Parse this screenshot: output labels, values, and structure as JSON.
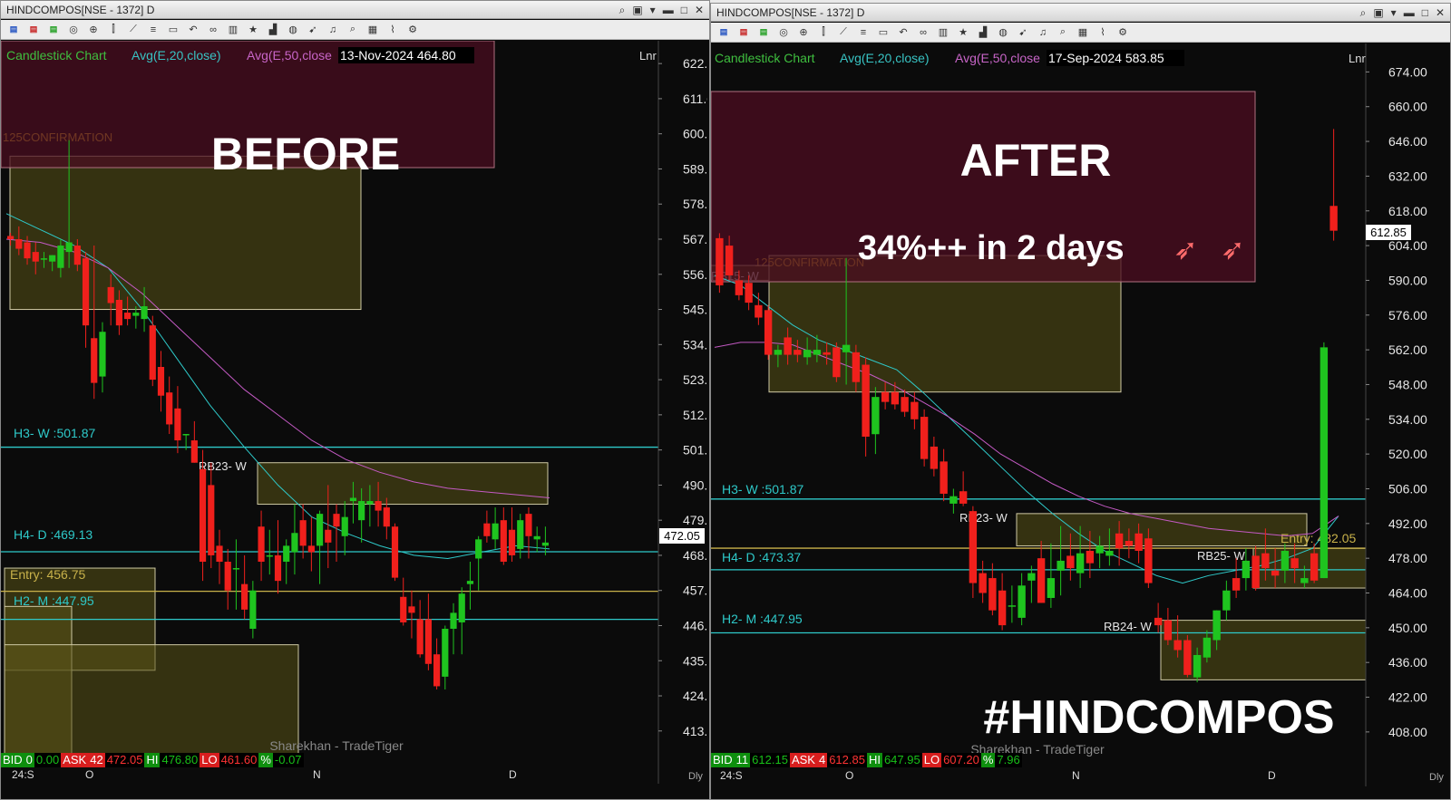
{
  "left": {
    "window_title": "HINDCOMPOS[NSE - 1372] D",
    "legend": {
      "chart_name": "Candlestick Chart",
      "ma20": "Avg(E,20,close)",
      "ma50": "Avg(E,50,close",
      "date_price": "13-Nov-2024 464.80",
      "scale": "Lnr"
    },
    "overlay_text": "BEFORE",
    "watermark": "Sharekhan - TradeTiger",
    "x_ticks": [
      "24:S",
      "O",
      "N",
      "D"
    ],
    "price_tag": "472.05",
    "bottom_bar": {
      "bid_label": "BID",
      "bid_qty": "0",
      "bid_price": "0.00",
      "ask_label": "ASK",
      "ask_qty": "42",
      "ask_price": "472.05",
      "hi_label": "HI",
      "hi": "476.80",
      "lo_label": "LO",
      "lo": "461.60",
      "pct_label": "%",
      "pct": "-0.07"
    },
    "period": "Dly",
    "chart_data": {
      "type": "candlestick",
      "title": "Candlestick Chart",
      "ylim": [
        405,
        628
      ],
      "y_ticks": [
        622,
        611,
        600,
        589,
        578,
        567,
        556,
        545,
        534,
        523,
        512,
        501,
        490,
        479,
        468,
        457,
        446,
        435,
        424,
        413
      ],
      "x_ticks": [
        "24:S",
        "O",
        "N",
        "D"
      ],
      "levels": [
        {
          "label": "H3- W :501.87",
          "value": 501.87
        },
        {
          "label": "H4- D :469.13",
          "value": 469.13
        },
        {
          "label": "Entry: 456.75",
          "value": 456.75
        },
        {
          "label": "H2- M :447.95",
          "value": 447.95
        }
      ],
      "zones": [
        {
          "label": "125CONFIRMATION",
          "from": 593,
          "to": 545
        },
        {
          "label": "RB23- W",
          "from": 497,
          "to": 484
        },
        {
          "label": "",
          "from": 464,
          "to": 432
        },
        {
          "label": "",
          "from": 452,
          "to": 404
        },
        {
          "label": "",
          "from": 440,
          "to": 404
        }
      ],
      "series": [
        {
          "name": "Candlestick Chart",
          "candles": [
            [
              568,
              569,
              565,
              567
            ],
            [
              567,
              571,
              562,
              564
            ],
            [
              566,
              568,
              559,
              561
            ],
            [
              563,
              566,
              556,
              560
            ],
            [
              561,
              563,
              558,
              561
            ],
            [
              560,
              562,
              557,
              562
            ],
            [
              558,
              567,
              555,
              565
            ],
            [
              563,
              598,
              558,
              566
            ],
            [
              565,
              567,
              557,
              559
            ],
            [
              561,
              563,
              533,
              540
            ],
            [
              536,
              565,
              517,
              522
            ],
            [
              524,
              541,
              519,
              538
            ],
            [
              552,
              556,
              540,
              547
            ],
            [
              548,
              551,
              537,
              540
            ],
            [
              544,
              549,
              540,
              542
            ],
            [
              543,
              546,
              539,
              544
            ],
            [
              542,
              552,
              538,
              546
            ],
            [
              540,
              543,
              521,
              523
            ],
            [
              527,
              532,
              513,
              518
            ],
            [
              519,
              524,
              506,
              509
            ],
            [
              514,
              521,
              500,
              504
            ],
            [
              506,
              506,
              501,
              506
            ],
            [
              504,
              510,
              497,
              497
            ],
            [
              495,
              501,
              460,
              466
            ],
            [
              490,
              497,
              464,
              468
            ],
            [
              471,
              476,
              459,
              466
            ],
            [
              466,
              470,
              451,
              457
            ],
            [
              464,
              473,
              451,
              464
            ],
            [
              459,
              468,
              448,
              451
            ],
            [
              445,
              460,
              442,
              457
            ],
            [
              477,
              482,
              460,
              466
            ],
            [
              468,
              476,
              462,
              468
            ],
            [
              468,
              479,
              456,
              460
            ],
            [
              466,
              473,
              459,
              471
            ],
            [
              469,
              484,
              462,
              475
            ],
            [
              479,
              484,
              467,
              471
            ],
            [
              471,
              480,
              463,
              469
            ],
            [
              471,
              482,
              459,
              481
            ],
            [
              476,
              490,
              464,
              472
            ],
            [
              481,
              484,
              466,
              477
            ],
            [
              474,
              485,
              468,
              480
            ],
            [
              485,
              491,
              478,
              486
            ],
            [
              479,
              489,
              472,
              485
            ],
            [
              484,
              490,
              477,
              485
            ],
            [
              485,
              491,
              477,
              482
            ],
            [
              483,
              486,
              473,
              477
            ],
            [
              477,
              478,
              460,
              461
            ],
            [
              455,
              461,
              446,
              447
            ],
            [
              452,
              457,
              442,
              450
            ],
            [
              448,
              454,
              436,
              437
            ],
            [
              448,
              456,
              432,
              434
            ],
            [
              437,
              442,
              426,
              427
            ],
            [
              430,
              446,
              426,
              445
            ],
            [
              445,
              453,
              437,
              450
            ],
            [
              447,
              458,
              437,
              456
            ],
            [
              459,
              466,
              451,
              460
            ],
            [
              467,
              474,
              457,
              473
            ],
            [
              478,
              482,
              472,
              474
            ],
            [
              473,
              483,
              470,
              478
            ],
            [
              479,
              483,
              465,
              466
            ],
            [
              476,
              483,
              466,
              468
            ],
            [
              470,
              481,
              467,
              479
            ],
            [
              481,
              483,
              467,
              474
            ],
            [
              473,
              477,
              469,
              474
            ],
            [
              471,
              477,
              468,
              472
            ]
          ]
        },
        {
          "name": "Avg(E,20,close)",
          "values": [
            575,
            570,
            565,
            558,
            545,
            530,
            515,
            502,
            490,
            480,
            475,
            471,
            468,
            467,
            469,
            471,
            470
          ]
        },
        {
          "name": "Avg(E,50,close",
          "values": [
            567,
            566,
            563,
            558,
            550,
            540,
            530,
            520,
            512,
            504,
            498,
            494,
            491,
            489,
            488,
            487,
            486
          ]
        }
      ]
    }
  },
  "right": {
    "window_title": "HINDCOMPOS[NSE - 1372] D",
    "legend": {
      "chart_name": "Candlestick Chart",
      "ma20": "Avg(E,20,close)",
      "ma50": "Avg(E,50,close",
      "date_price": "17-Sep-2024 583.85",
      "scale": "Lnr"
    },
    "overlay_title": "AFTER",
    "overlay_subtitle": "34%++ in 2 days",
    "hashtag": "#HINDCOMPOS",
    "watermark": "Sharekhan - TradeTiger",
    "x_ticks": [
      "24:S",
      "O",
      "N",
      "D"
    ],
    "price_tag": "612.85",
    "bottom_bar": {
      "bid_label": "BID",
      "bid_qty": "11",
      "bid_price": "612.15",
      "ask_label": "ASK",
      "ask_qty": "4",
      "ask_price": "612.85",
      "hi_label": "HI",
      "hi": "647.95",
      "lo_label": "LO",
      "lo": "607.20",
      "pct_label": "%",
      "pct": "7.96"
    },
    "period": "Dly",
    "chart_data": {
      "type": "candlestick",
      "title": "Candlestick Chart",
      "ylim": [
        397,
        684
      ],
      "y_ticks": [
        674,
        660,
        646,
        632,
        618,
        604,
        590,
        576,
        562,
        548,
        534,
        520,
        506,
        492,
        478,
        464,
        450,
        436,
        422,
        408
      ],
      "x_ticks": [
        "24:S",
        "O",
        "N",
        "D"
      ],
      "levels": [
        {
          "label": "H3- W :501.87",
          "value": 501.87
        },
        {
          "label": "Entry: 482.05",
          "value": 482.05
        },
        {
          "label": "H4- D :473.37",
          "value": 473.37
        },
        {
          "label": "H2- M :447.95",
          "value": 447.95
        }
      ],
      "zones": [
        {
          "label": "125CONFIRMATION",
          "from": 600,
          "to": 545
        },
        {
          "label": "RB15- W",
          "from": 596,
          "to": 590
        },
        {
          "label": "RB23- W",
          "from": 496,
          "to": 483
        },
        {
          "label": "RB25- W",
          "from": 482,
          "to": 466
        },
        {
          "label": "RB24- W",
          "from": 453,
          "to": 429
        }
      ],
      "series": [
        {
          "name": "Candlestick Chart",
          "candles": [
            [
              607,
              609,
              585,
              588
            ],
            [
              604,
              608,
              590,
              592
            ],
            [
              590,
              594,
              582,
              584
            ],
            [
              589,
              592,
              578,
              581
            ],
            [
              580,
              585,
              572,
              575
            ],
            [
              578,
              580,
              558,
              560
            ],
            [
              560,
              564,
              555,
              562
            ],
            [
              567,
              571,
              556,
              560
            ],
            [
              562,
              566,
              557,
              560
            ],
            [
              559,
              567,
              556,
              562
            ],
            [
              560,
              568,
              557,
              562
            ],
            [
              561,
              565,
              556,
              560
            ],
            [
              563,
              565,
              549,
              551
            ],
            [
              561,
              599,
              548,
              564
            ],
            [
              561,
              564,
              545,
              549
            ],
            [
              556,
              559,
              519,
              527
            ],
            [
              528,
              547,
              520,
              543
            ],
            [
              545,
              549,
              538,
              541
            ],
            [
              545,
              549,
              538,
              540
            ],
            [
              543,
              546,
              535,
              537
            ],
            [
              541,
              545,
              530,
              534
            ],
            [
              535,
              538,
              515,
              518
            ],
            [
              523,
              527,
              511,
              514
            ],
            [
              517,
              522,
              501,
              504
            ],
            [
              500,
              506,
              496,
              503
            ],
            [
              505,
              513,
              499,
              500
            ],
            [
              497,
              499,
              462,
              468
            ],
            [
              472,
              477,
              460,
              464
            ],
            [
              470,
              476,
              455,
              457
            ],
            [
              465,
              472,
              449,
              451
            ],
            [
              459,
              467,
              452,
              459
            ],
            [
              454,
              472,
              451,
              467
            ],
            [
              469,
              475,
              460,
              472
            ],
            [
              478,
              485,
              460,
              460
            ],
            [
              462,
              484,
              458,
              470
            ],
            [
              473,
              491,
              463,
              477
            ],
            [
              479,
              488,
              469,
              474
            ],
            [
              472,
              491,
              466,
              480
            ],
            [
              481,
              489,
              470,
              476
            ],
            [
              480,
              487,
              474,
              483
            ],
            [
              479,
              490,
              475,
              481
            ],
            [
              488,
              493,
              475,
              482
            ],
            [
              485,
              490,
              478,
              483
            ],
            [
              488,
              492,
              476,
              481
            ],
            [
              486,
              490,
              466,
              468
            ],
            [
              454,
              460,
              448,
              451
            ],
            [
              453,
              458,
              443,
              445
            ],
            [
              445,
              455,
              438,
              441
            ],
            [
              445,
              447,
              430,
              431
            ],
            [
              430,
              442,
              428,
              439
            ],
            [
              438,
              449,
              436,
              446
            ],
            [
              445,
              457,
              441,
              457
            ],
            [
              457,
              469,
              453,
              465
            ],
            [
              470,
              478,
              462,
              465
            ],
            [
              470,
              482,
              465,
              477
            ],
            [
              479,
              483,
              465,
              466
            ],
            [
              480,
              490,
              469,
              474
            ],
            [
              473,
              482,
              466,
              471
            ],
            [
              473,
              484,
              468,
              481
            ],
            [
              478,
              484,
              468,
              474
            ],
            [
              468,
              475,
              466,
              470
            ],
            [
              480,
              484,
              468,
              469
            ],
            [
              470,
              565,
              470,
              563
            ],
            [
              620,
              651,
              606,
              610
            ]
          ]
        },
        {
          "name": "Avg(E,20,close)",
          "values": [
            592,
            588,
            580,
            572,
            566,
            562,
            558,
            554,
            545,
            535,
            525,
            515,
            505,
            496,
            488,
            481,
            476,
            471,
            468,
            471,
            473,
            475,
            478,
            482,
            495
          ]
        },
        {
          "name": "Avg(E,50,close",
          "values": [
            563,
            565,
            565,
            564,
            560,
            556,
            552,
            547,
            541,
            535,
            528,
            520,
            514,
            508,
            503,
            499,
            496,
            494,
            492,
            490,
            489,
            488,
            487,
            488,
            495
          ]
        }
      ]
    }
  }
}
